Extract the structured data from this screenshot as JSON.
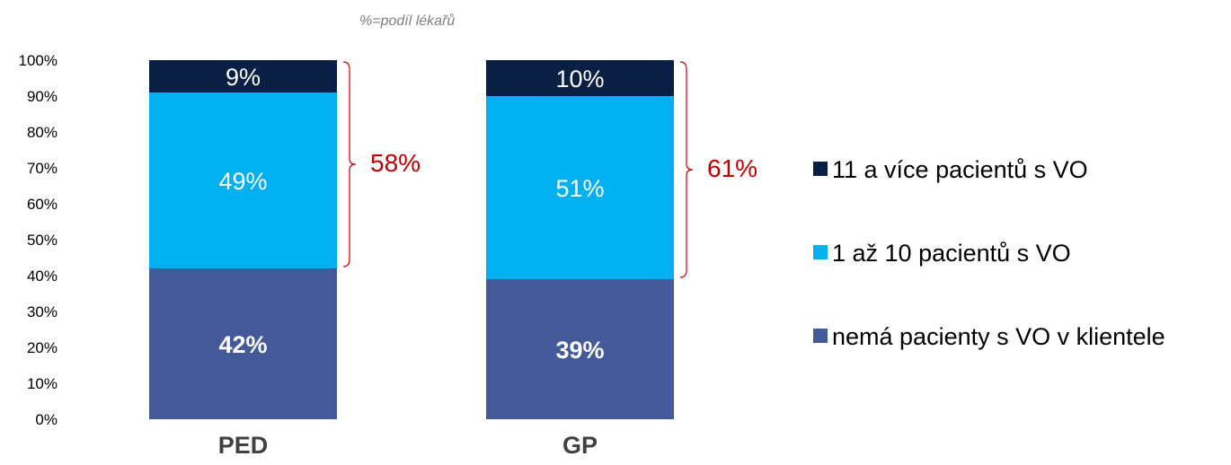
{
  "chart_data": {
    "type": "bar",
    "stacked": true,
    "annotation": "%=podíl lékařů",
    "categories": [
      "PED",
      "GP"
    ],
    "y_ticks": [
      "0%",
      "10%",
      "20%",
      "30%",
      "40%",
      "50%",
      "60%",
      "70%",
      "80%",
      "90%",
      "100%"
    ],
    "ylim": [
      0,
      100
    ],
    "series": [
      {
        "name": "nemá pacienty s VO v klientele",
        "color": "#44599a",
        "label_color": "#ffffff",
        "label_bold": true,
        "values": [
          42,
          39
        ],
        "labels": [
          "42%",
          "39%"
        ]
      },
      {
        "name": "1 až 10 pacientů s VO",
        "color": "#00b0f0",
        "label_color": "#ffffff",
        "label_bold": false,
        "values": [
          49,
          51
        ],
        "labels": [
          "49%",
          "51%"
        ]
      },
      {
        "name": "11 a více pacientů s VO",
        "color": "#0a1f44",
        "label_color": "#ffffff",
        "label_bold": false,
        "values": [
          9,
          10
        ],
        "labels": [
          "9%",
          "10%"
        ]
      }
    ],
    "brackets": [
      {
        "category": "PED",
        "range": [
          42,
          100
        ],
        "label": "58%"
      },
      {
        "category": "GP",
        "range": [
          39,
          100
        ],
        "label": "61%"
      }
    ],
    "bracket_color": "#c00000",
    "legend": {
      "position": "right",
      "order": [
        "11 a více pacientů s VO",
        "1 až 10 pacientů s VO",
        "nemá pacienty s VO v klientele"
      ]
    },
    "grid": false
  }
}
